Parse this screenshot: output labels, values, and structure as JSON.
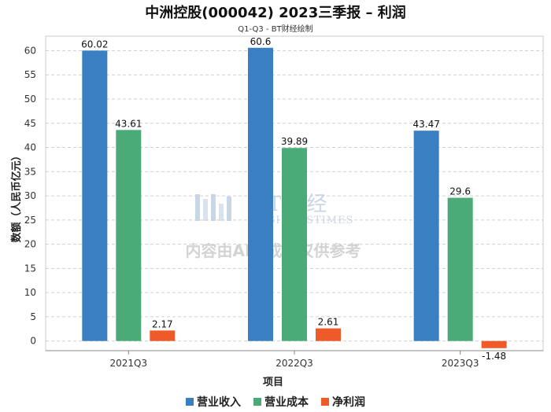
{
  "title": "中洲控股(000042) 2023三季报 – 利润",
  "subtitle": "Q1-Q3 - BT财经绘制",
  "watermark": {
    "brand": "BT财经",
    "brand_sub": "BUSINESSTIMES",
    "notice": "内容由AI生成，仅供参考"
  },
  "colors": {
    "revenue": "#3a7fc1",
    "cost": "#4aab78",
    "profit": "#f05a28"
  },
  "chart_data": {
    "type": "bar",
    "title": "中洲控股(000042) 2023三季报 – 利润",
    "xlabel": "项目",
    "ylabel": "数额（人民币亿元）",
    "ylim": [
      -2,
      63
    ],
    "yticks": [
      0,
      5,
      10,
      15,
      20,
      25,
      30,
      35,
      40,
      45,
      50,
      55,
      60
    ],
    "grid": true,
    "legend_position": "bottom",
    "categories": [
      "2021Q3",
      "2022Q3",
      "2023Q3"
    ],
    "series": [
      {
        "name": "营业收入",
        "key": "revenue",
        "values": [
          60.02,
          60.6,
          43.47
        ],
        "labels": [
          "60.02",
          "60.6",
          "43.47"
        ]
      },
      {
        "name": "营业成本",
        "key": "cost",
        "values": [
          43.61,
          39.89,
          29.6
        ],
        "labels": [
          "43.61",
          "39.89",
          "29.6"
        ]
      },
      {
        "name": "净利润",
        "key": "profit",
        "values": [
          2.17,
          2.61,
          -1.48
        ],
        "labels": [
          "2.17",
          "2.61",
          "-1.48"
        ]
      }
    ]
  }
}
